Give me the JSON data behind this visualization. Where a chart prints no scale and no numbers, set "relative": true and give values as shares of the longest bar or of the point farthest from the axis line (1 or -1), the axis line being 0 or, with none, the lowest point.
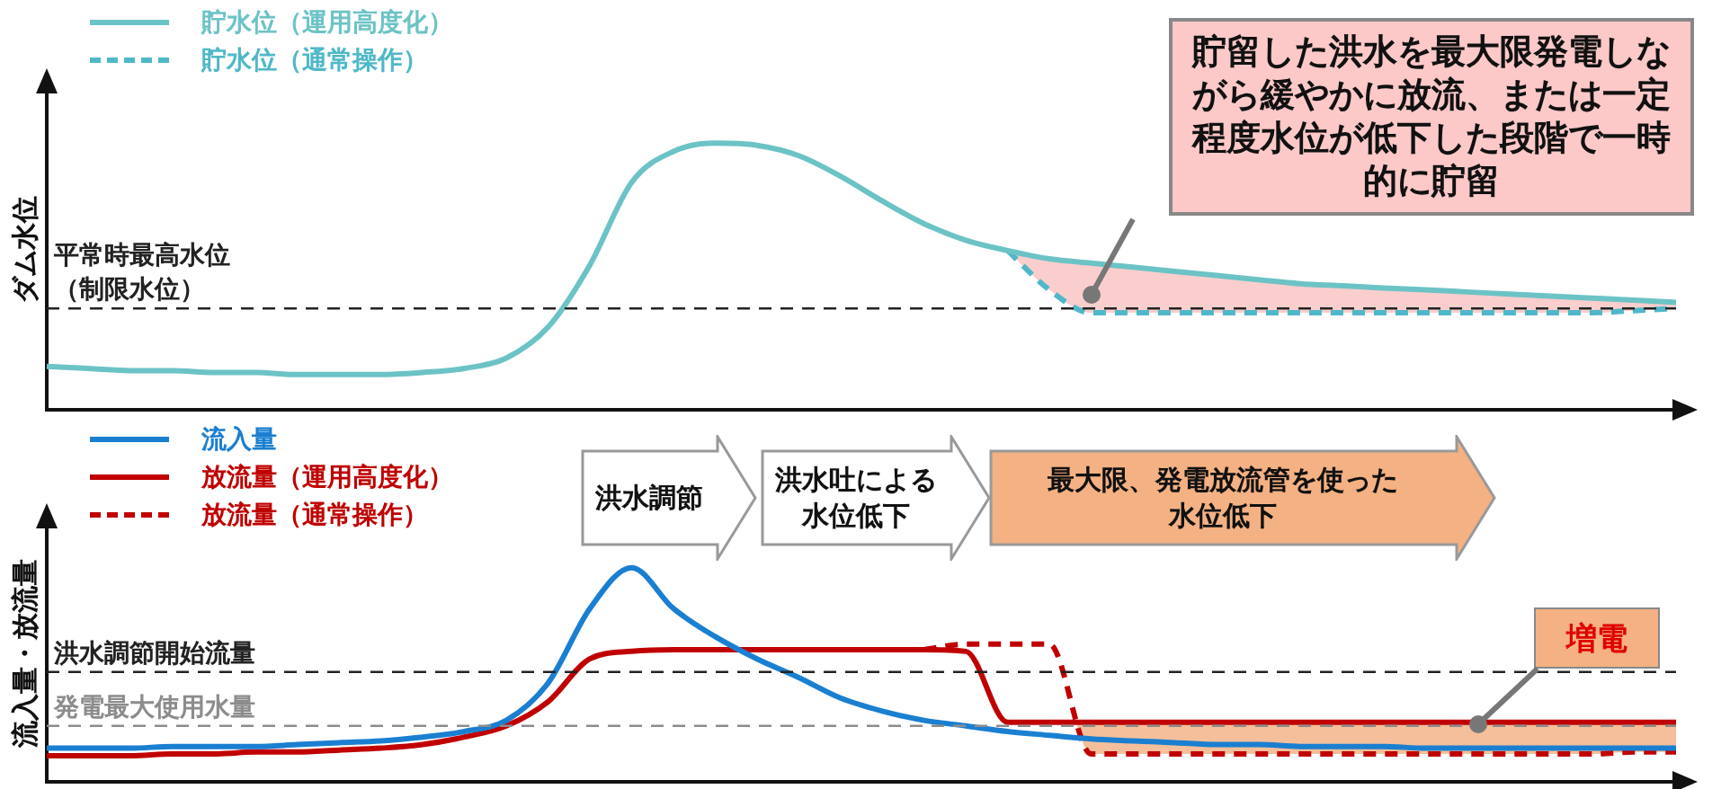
{
  "chart_data": [
    {
      "type": "line",
      "relative": true,
      "ylabel": "ダム水位",
      "legend": "top left",
      "categories": [
        null,
        null,
        null,
        null,
        null,
        null,
        null,
        null,
        null,
        null,
        null,
        null,
        null,
        null,
        null,
        null,
        null,
        null,
        null,
        null,
        null,
        null,
        null,
        null,
        null,
        null,
        null,
        null,
        null,
        null,
        null,
        null,
        null,
        null,
        null,
        null,
        null,
        null,
        null,
        null
      ],
      "series": [
        {
          "name": "貯水位（運用高度化）",
          "color": "#6cc3c6",
          "line_style": "solid",
          "values": [
            0.163,
            0.155,
            0.147,
            0.147,
            0.14,
            0.14,
            0.132,
            0.132,
            0.132,
            0.14,
            0.155,
            0.194,
            0.31,
            0.543,
            0.853,
            0.969,
            1,
            0.992,
            0.953,
            0.876,
            0.783,
            0.698,
            0.636,
            0.597,
            0.566,
            0.55,
            0.535,
            0.519,
            0.504,
            0.488,
            0.473,
            0.465,
            0.457,
            0.45,
            0.442,
            0.434,
            0.426,
            0.419,
            0.411,
            0.403
          ]
        },
        {
          "name": "貯水位（通常操作）",
          "color": "#4fb8c8",
          "line_style": "dashed",
          "values": [
            null,
            null,
            null,
            null,
            null,
            null,
            null,
            null,
            null,
            null,
            null,
            null,
            null,
            null,
            null,
            null,
            null,
            null,
            null,
            null,
            null,
            null,
            null,
            0.597,
            0.45,
            0.364,
            0.364,
            0.364,
            0.364,
            0.364,
            0.364,
            0.364,
            0.364,
            0.364,
            0.364,
            0.364,
            0.364,
            0.364,
            0.372,
            0.38
          ]
        }
      ],
      "ref_lines": [
        {
          "axis": "y",
          "value": 0.38,
          "label": "平常時最高水位（制限水位）",
          "color": "#222222",
          "line_style": "dashed"
        }
      ],
      "annotations": [
        "貯留した洪水を最大限発電しながら緩やかに放流、または一定程度水位が低下した段階で一時的に貯留"
      ]
    },
    {
      "type": "line",
      "relative": true,
      "ylabel": "流入量・放流量",
      "legend": "top left",
      "categories": [
        null,
        null,
        null,
        null,
        null,
        null,
        null,
        null,
        null,
        null,
        null,
        null,
        null,
        null,
        null,
        null,
        null,
        null,
        null,
        null,
        null,
        null,
        null,
        null,
        null,
        null,
        null,
        null,
        null,
        null,
        null,
        null,
        null,
        null,
        null,
        null,
        null,
        null,
        null,
        null
      ],
      "series": [
        {
          "name": "流入量",
          "color": "#1a7fd1",
          "line_style": "solid",
          "values": [
            0.157,
            0.157,
            0.157,
            0.165,
            0.165,
            0.165,
            0.174,
            0.183,
            0.191,
            0.209,
            0.235,
            0.287,
            0.461,
            0.809,
            1,
            0.809,
            0.678,
            0.574,
            0.487,
            0.391,
            0.33,
            0.287,
            0.261,
            0.235,
            0.217,
            0.2,
            0.191,
            0.183,
            0.174,
            0.174,
            0.165,
            0.165,
            0.165,
            0.157,
            0.157,
            0.157,
            0.157,
            0.157,
            0.157,
            0.157
          ]
        },
        {
          "name": "放流量（運用高度化）",
          "color": "#c00000",
          "line_style": "solid",
          "values": [
            0.122,
            0.122,
            0.122,
            0.13,
            0.13,
            0.139,
            0.139,
            0.148,
            0.157,
            0.174,
            0.209,
            0.261,
            0.374,
            0.574,
            0.609,
            0.617,
            0.617,
            0.617,
            0.617,
            0.617,
            0.617,
            0.617,
            0.609,
            0.278,
            0.278,
            0.278,
            0.278,
            0.278,
            0.278,
            0.278,
            0.278,
            0.278,
            0.278,
            0.278,
            0.278,
            0.278,
            0.278,
            0.278,
            0.278,
            0.278
          ]
        },
        {
          "name": "放流量（通常操作）",
          "color": "#c00000",
          "line_style": "dashed",
          "values": [
            null,
            null,
            null,
            null,
            null,
            null,
            null,
            null,
            null,
            null,
            null,
            null,
            null,
            null,
            null,
            null,
            null,
            null,
            null,
            null,
            null,
            0.617,
            0.643,
            0.643,
            0.643,
            0.13,
            0.13,
            0.13,
            0.13,
            0.13,
            0.13,
            0.13,
            0.13,
            0.13,
            0.13,
            0.13,
            0.13,
            0.13,
            0.139,
            0.139
          ]
        }
      ],
      "ref_lines": [
        {
          "axis": "y",
          "value": 0.513,
          "label": "洪水調節開始流量",
          "color": "#222222",
          "line_style": "dashed"
        },
        {
          "axis": "y",
          "value": 0.261,
          "label": "発電最大使用水量",
          "color": "#8c8c8c",
          "line_style": "dashed"
        }
      ],
      "annotations": [
        "洪水調節",
        "洪水吐による水位低下",
        "最大限、発電放流管を使った水位低下",
        "増電"
      ]
    }
  ]
}
